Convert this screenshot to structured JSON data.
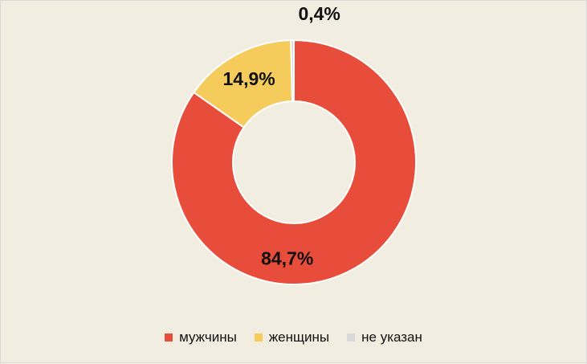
{
  "chart_data": {
    "type": "pie",
    "variant": "donut",
    "categories": [
      "мужчины",
      "женщины",
      "не указан"
    ],
    "values": [
      84.7,
      14.9,
      0.4
    ],
    "labels": [
      "84,7%",
      "14,9%",
      "0,4%"
    ],
    "colors": [
      "#e84c3a",
      "#f5cb5c",
      "#d9d9d9"
    ],
    "legend_position": "bottom",
    "start": "top",
    "direction": "clockwise"
  }
}
